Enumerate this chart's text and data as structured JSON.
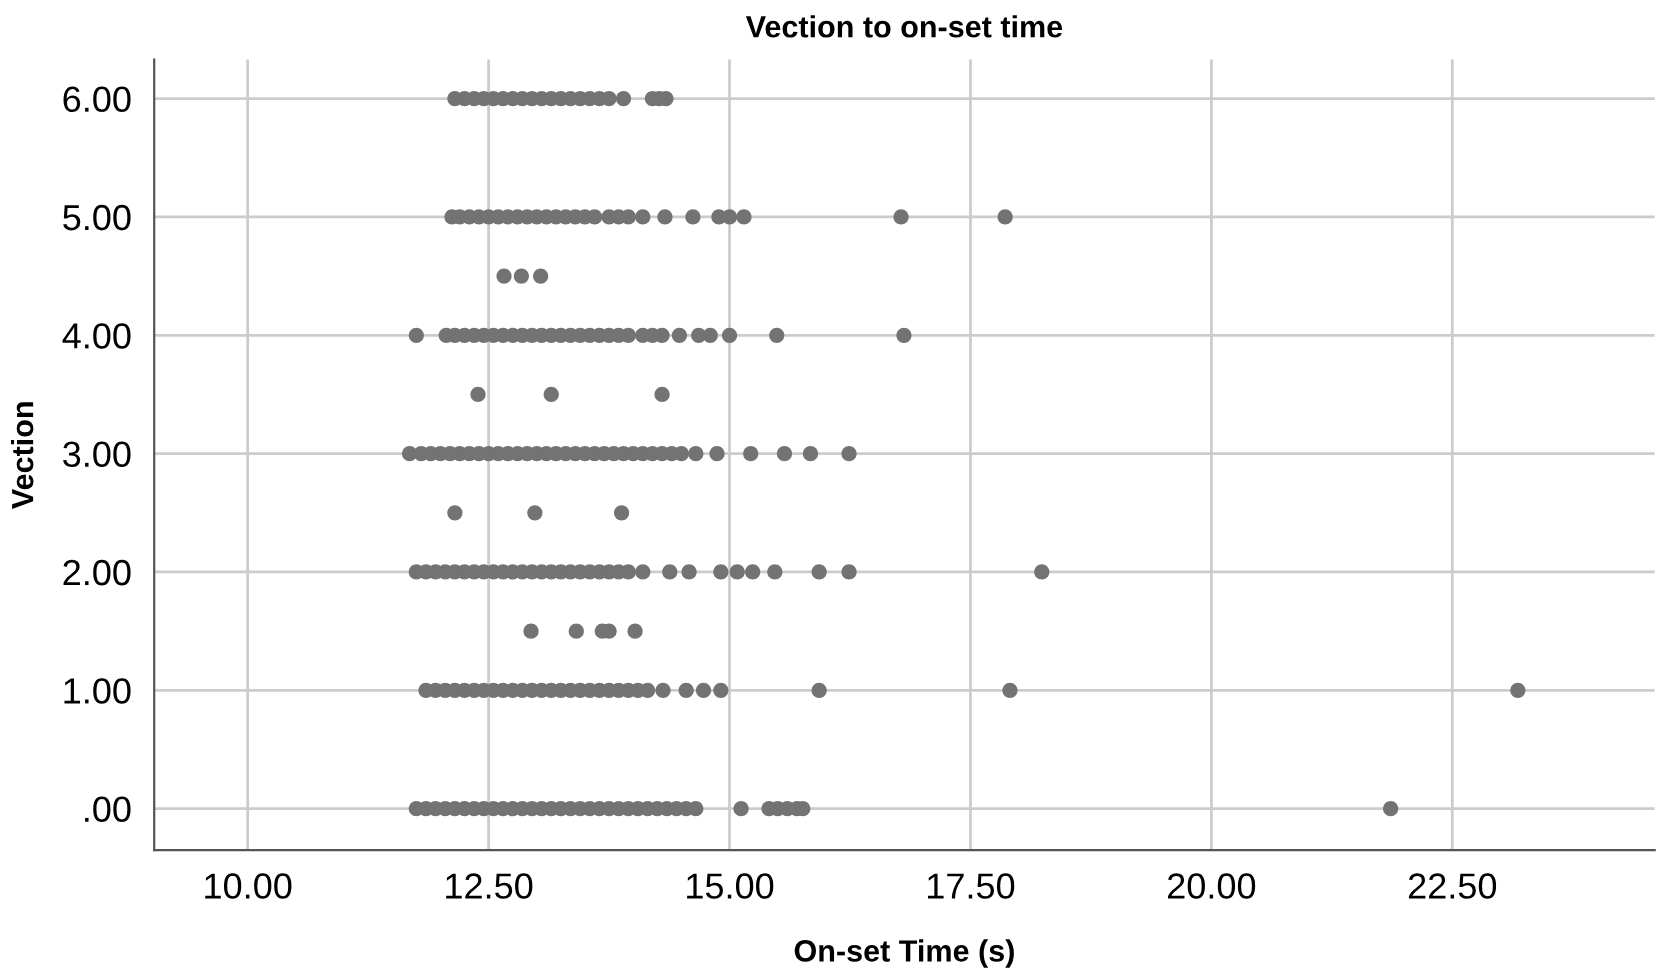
{
  "chart_data": {
    "type": "scatter",
    "title": "Vection to on-set time",
    "xlabel": "On-set Time (s)",
    "ylabel": "Vection",
    "xlim": [
      9.03,
      24.6
    ],
    "ylim": [
      -0.35,
      6.33
    ],
    "xticks": [
      {
        "value": 10,
        "label": "10.00"
      },
      {
        "value": 12.5,
        "label": "12.50"
      },
      {
        "value": 15,
        "label": "15.00"
      },
      {
        "value": 17.5,
        "label": "17.50"
      },
      {
        "value": 20,
        "label": "20.00"
      },
      {
        "value": 22.5,
        "label": "22.50"
      }
    ],
    "yticks": [
      {
        "value": 0,
        "label": ".00"
      },
      {
        "value": 1,
        "label": "1.00"
      },
      {
        "value": 2,
        "label": "2.00"
      },
      {
        "value": 3,
        "label": "3.00"
      },
      {
        "value": 4,
        "label": "4.00"
      },
      {
        "value": 5,
        "label": "5.00"
      },
      {
        "value": 6,
        "label": "6.00"
      }
    ],
    "grid": true,
    "marker": "circle",
    "series": [
      {
        "color": "#737373",
        "x": [
          12.15,
          12.25,
          12.35,
          12.45,
          12.55,
          12.65,
          12.75,
          12.85,
          12.95,
          13.05,
          13.15,
          13.25,
          13.35,
          13.45,
          13.55,
          13.65,
          13.75,
          13.9,
          14.2,
          14.27,
          14.34
        ],
        "values": [
          6,
          6,
          6,
          6,
          6,
          6,
          6,
          6,
          6,
          6,
          6,
          6,
          6,
          6,
          6,
          6,
          6,
          6,
          6,
          6,
          6
        ]
      },
      {
        "color": "#737373",
        "x": [
          12.12,
          12.2,
          12.3,
          12.4,
          12.5,
          12.6,
          12.7,
          12.8,
          12.9,
          13.0,
          13.1,
          13.2,
          13.3,
          13.4,
          13.5,
          13.6,
          13.75,
          13.85,
          13.95,
          14.1,
          14.33,
          14.62,
          14.89,
          15.0,
          15.15,
          16.78,
          17.86
        ],
        "values": [
          5,
          5,
          5,
          5,
          5,
          5,
          5,
          5,
          5,
          5,
          5,
          5,
          5,
          5,
          5,
          5,
          5,
          5,
          5,
          5,
          5,
          5,
          5,
          5,
          5,
          5,
          5
        ]
      },
      {
        "color": "#737373",
        "x": [
          12.66,
          12.84,
          13.04
        ],
        "values": [
          4.5,
          4.5,
          4.5
        ]
      },
      {
        "color": "#737373",
        "x": [
          11.75,
          12.06,
          12.15,
          12.25,
          12.35,
          12.45,
          12.55,
          12.65,
          12.75,
          12.85,
          12.95,
          13.05,
          13.15,
          13.25,
          13.35,
          13.45,
          13.55,
          13.65,
          13.75,
          13.85,
          13.95,
          14.1,
          14.2,
          14.3,
          14.48,
          14.68,
          14.8,
          15.0,
          15.49,
          16.81
        ],
        "values": [
          4,
          4,
          4,
          4,
          4,
          4,
          4,
          4,
          4,
          4,
          4,
          4,
          4,
          4,
          4,
          4,
          4,
          4,
          4,
          4,
          4,
          4,
          4,
          4,
          4,
          4,
          4,
          4,
          4,
          4
        ]
      },
      {
        "color": "#737373",
        "x": [
          12.39,
          13.15,
          14.3
        ],
        "values": [
          3.5,
          3.5,
          3.5
        ]
      },
      {
        "color": "#737373",
        "x": [
          11.68,
          11.8,
          11.9,
          12.0,
          12.1,
          12.2,
          12.3,
          12.4,
          12.5,
          12.6,
          12.7,
          12.8,
          12.9,
          13.0,
          13.1,
          13.2,
          13.3,
          13.4,
          13.5,
          13.6,
          13.7,
          13.8,
          13.9,
          14.0,
          14.1,
          14.2,
          14.3,
          14.4,
          14.5,
          14.65,
          14.87,
          15.22,
          15.57,
          15.84,
          16.24
        ],
        "values": [
          3,
          3,
          3,
          3,
          3,
          3,
          3,
          3,
          3,
          3,
          3,
          3,
          3,
          3,
          3,
          3,
          3,
          3,
          3,
          3,
          3,
          3,
          3,
          3,
          3,
          3,
          3,
          3,
          3,
          3,
          3,
          3,
          3,
          3,
          3
        ]
      },
      {
        "color": "#737373",
        "x": [
          12.15,
          12.98,
          13.88
        ],
        "values": [
          2.5,
          2.5,
          2.5
        ]
      },
      {
        "color": "#737373",
        "x": [
          11.75,
          11.85,
          11.95,
          12.05,
          12.15,
          12.25,
          12.35,
          12.45,
          12.55,
          12.65,
          12.75,
          12.85,
          12.95,
          13.05,
          13.15,
          13.25,
          13.35,
          13.45,
          13.55,
          13.65,
          13.75,
          13.85,
          13.95,
          14.1,
          14.38,
          14.58,
          14.91,
          15.08,
          15.24,
          15.47,
          15.93,
          16.24,
          18.24
        ],
        "values": [
          2,
          2,
          2,
          2,
          2,
          2,
          2,
          2,
          2,
          2,
          2,
          2,
          2,
          2,
          2,
          2,
          2,
          2,
          2,
          2,
          2,
          2,
          2,
          2,
          2,
          2,
          2,
          2,
          2,
          2,
          2,
          2,
          2
        ]
      },
      {
        "color": "#737373",
        "x": [
          12.94,
          13.41,
          13.68,
          13.75,
          14.02
        ],
        "values": [
          1.5,
          1.5,
          1.5,
          1.5,
          1.5
        ]
      },
      {
        "color": "#737373",
        "x": [
          11.85,
          11.95,
          12.05,
          12.15,
          12.25,
          12.35,
          12.45,
          12.55,
          12.65,
          12.75,
          12.85,
          12.95,
          13.05,
          13.15,
          13.25,
          13.35,
          13.45,
          13.55,
          13.65,
          13.75,
          13.85,
          13.95,
          14.05,
          14.15,
          14.31,
          14.55,
          14.73,
          14.91,
          15.93,
          17.91,
          23.18
        ],
        "values": [
          1,
          1,
          1,
          1,
          1,
          1,
          1,
          1,
          1,
          1,
          1,
          1,
          1,
          1,
          1,
          1,
          1,
          1,
          1,
          1,
          1,
          1,
          1,
          1,
          1,
          1,
          1,
          1,
          1,
          1,
          1
        ]
      },
      {
        "color": "#737373",
        "x": [
          11.75,
          11.85,
          11.95,
          12.05,
          12.15,
          12.25,
          12.35,
          12.45,
          12.55,
          12.65,
          12.75,
          12.85,
          12.95,
          13.05,
          13.15,
          13.25,
          13.35,
          13.45,
          13.55,
          13.65,
          13.75,
          13.85,
          13.95,
          14.05,
          14.15,
          14.25,
          14.35,
          14.45,
          14.55,
          14.65,
          15.12,
          15.41,
          15.5,
          15.6,
          15.7,
          15.76,
          21.86
        ],
        "values": [
          0,
          0,
          0,
          0,
          0,
          0,
          0,
          0,
          0,
          0,
          0,
          0,
          0,
          0,
          0,
          0,
          0,
          0,
          0,
          0,
          0,
          0,
          0,
          0,
          0,
          0,
          0,
          0,
          0,
          0,
          0,
          0,
          0,
          0,
          0,
          0,
          0
        ]
      }
    ]
  }
}
